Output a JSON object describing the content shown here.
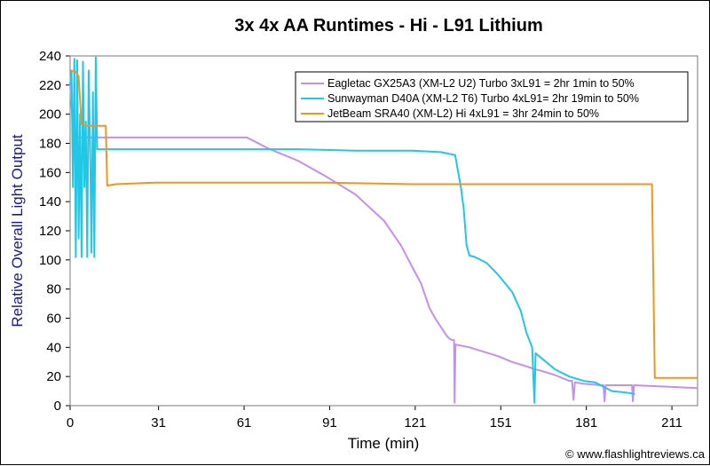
{
  "chart_data": {
    "type": "line",
    "title": "3x 4x AA Runtimes - Hi - L91 Lithium",
    "xlabel": "Time (min)",
    "ylabel": "Relative Overall Light Output",
    "xlim": [
      0,
      220
    ],
    "ylim": [
      0,
      240
    ],
    "xticks": [
      0,
      31,
      61,
      91,
      121,
      151,
      181,
      211
    ],
    "yticks": [
      0,
      20,
      40,
      60,
      80,
      100,
      120,
      140,
      160,
      180,
      200,
      220,
      240
    ],
    "grid": false,
    "legend_position": "top-right",
    "credit": "© www.flashlightreviews.ca",
    "series": [
      {
        "name": "Eagletac GX25A3 (XM-L2 U2) Turbo 3xL91 = 2hr 1min to 50%",
        "color": "#c58ff0",
        "points": [
          [
            0,
            220
          ],
          [
            1,
            192
          ],
          [
            2,
            186
          ],
          [
            3,
            184
          ],
          [
            10,
            184
          ],
          [
            30,
            184
          ],
          [
            50,
            184
          ],
          [
            62,
            184
          ],
          [
            64,
            182
          ],
          [
            70,
            176
          ],
          [
            80,
            168
          ],
          [
            90,
            157
          ],
          [
            100,
            145
          ],
          [
            110,
            127
          ],
          [
            116,
            110
          ],
          [
            120,
            95
          ],
          [
            123,
            84
          ],
          [
            126,
            67
          ],
          [
            128,
            60
          ],
          [
            130,
            54
          ],
          [
            132,
            48
          ],
          [
            133,
            46
          ],
          [
            134,
            45
          ],
          [
            134.6,
            45
          ],
          [
            134.8,
            2
          ],
          [
            135.1,
            42
          ],
          [
            140,
            40
          ],
          [
            150,
            34
          ],
          [
            155,
            30
          ],
          [
            160,
            27
          ],
          [
            163,
            25
          ],
          [
            165,
            24
          ],
          [
            170,
            21
          ],
          [
            175,
            17
          ],
          [
            176,
            17
          ],
          [
            176.5,
            4
          ],
          [
            177,
            16
          ],
          [
            180,
            15
          ],
          [
            186,
            14
          ],
          [
            187,
            14
          ],
          [
            187.4,
            3
          ],
          [
            187.8,
            14
          ],
          [
            197,
            14
          ],
          [
            197.3,
            3
          ],
          [
            197.7,
            14
          ],
          [
            210,
            13
          ],
          [
            220,
            12
          ]
        ]
      },
      {
        "name": "Sunwayman D40A (XM-L2 T6) Turbo 4xL91= 2hr 19min to 50%",
        "color": "#22c6e6",
        "points": [
          [
            0,
            220
          ],
          [
            0.5,
            230
          ],
          [
            1,
            150
          ],
          [
            1.5,
            238
          ],
          [
            2,
            102
          ],
          [
            2.5,
            237
          ],
          [
            3,
            115
          ],
          [
            3.5,
            200
          ],
          [
            4,
            102
          ],
          [
            4.5,
            236
          ],
          [
            5,
            150
          ],
          [
            5.5,
            195
          ],
          [
            6,
            102
          ],
          [
            6.5,
            230
          ],
          [
            7,
            180
          ],
          [
            7.5,
            105
          ],
          [
            8,
            215
          ],
          [
            8.5,
            102
          ],
          [
            9,
            239
          ],
          [
            9.5,
            176
          ],
          [
            20,
            176
          ],
          [
            50,
            176
          ],
          [
            80,
            176
          ],
          [
            100,
            175
          ],
          [
            120,
            175
          ],
          [
            130,
            174
          ],
          [
            135,
            172
          ],
          [
            137,
            150
          ],
          [
            138,
            135
          ],
          [
            139,
            110
          ],
          [
            140,
            103
          ],
          [
            142,
            102
          ],
          [
            146,
            98
          ],
          [
            150,
            90
          ],
          [
            155,
            78
          ],
          [
            158,
            65
          ],
          [
            160,
            50
          ],
          [
            162,
            40
          ],
          [
            162.8,
            2
          ],
          [
            163.2,
            36
          ],
          [
            165,
            33
          ],
          [
            170,
            25
          ],
          [
            175,
            20
          ],
          [
            180,
            17
          ],
          [
            184,
            16
          ],
          [
            186,
            14
          ],
          [
            190,
            10
          ],
          [
            195,
            9
          ],
          [
            198,
            8
          ]
        ]
      },
      {
        "name": "JetBeam SRA40 (XM-L2) Hi 4xL91 = 3hr 24min to 50%",
        "color": "#f0961e",
        "points": [
          [
            0,
            230
          ],
          [
            2,
            229
          ],
          [
            3,
            226
          ],
          [
            4,
            193
          ],
          [
            6,
            192
          ],
          [
            10,
            192
          ],
          [
            12.5,
            192
          ],
          [
            13,
            151
          ],
          [
            16,
            152
          ],
          [
            30,
            153
          ],
          [
            60,
            153
          ],
          [
            90,
            153
          ],
          [
            120,
            152
          ],
          [
            150,
            152
          ],
          [
            180,
            152
          ],
          [
            203,
            152
          ],
          [
            204,
            152
          ],
          [
            205,
            19
          ],
          [
            220,
            19
          ]
        ]
      }
    ]
  }
}
